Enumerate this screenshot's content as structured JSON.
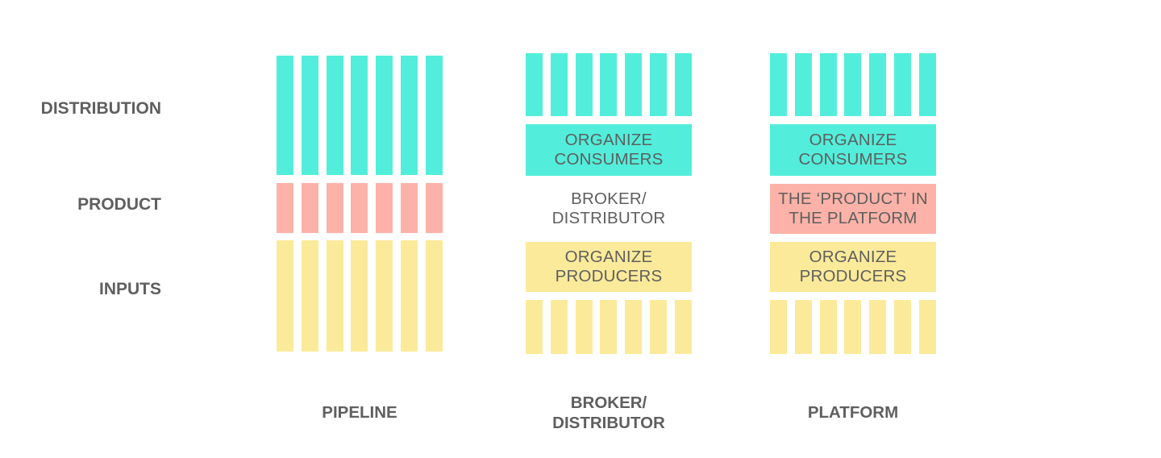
{
  "colors": {
    "distribution": "#52eedb",
    "product": "#fcb2a8",
    "inputs": "#fbea9a",
    "text": "#5f5f5f"
  },
  "row_labels": {
    "distribution": "DISTRIBUTION",
    "product": "PRODUCT",
    "inputs": "INPUTS"
  },
  "columns": {
    "pipeline": {
      "label": "PIPELINE"
    },
    "broker": {
      "label": "BROKER/\nDISTRIBUTOR",
      "organize_consumers": "ORGANIZE\nCONSUMERS",
      "middle_text": "BROKER/\nDISTRIBUTOR",
      "organize_producers": "ORGANIZE\nPRODUCERS"
    },
    "platform": {
      "label": "PLATFORM",
      "organize_consumers": "ORGANIZE\nCONSUMERS",
      "product_in_platform": "THE ‘PRODUCT’ IN\nTHE PLATFORM",
      "organize_producers": "ORGANIZE\nPRODUCERS"
    }
  }
}
